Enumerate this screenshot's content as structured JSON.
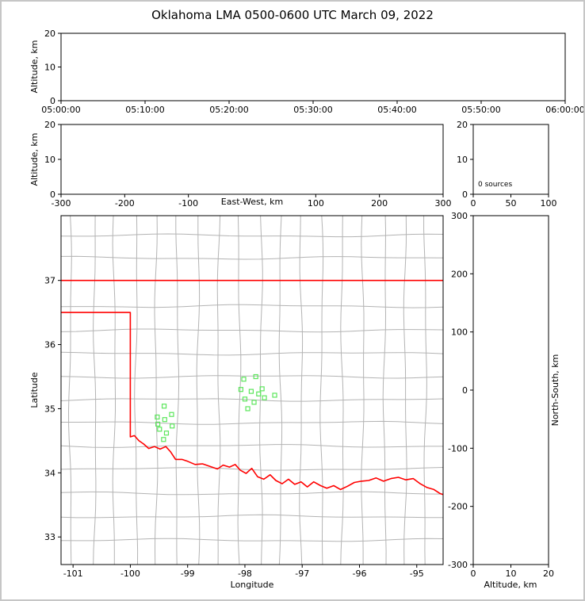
{
  "title": "Oklahoma LMA 0500-0600 UTC March 09, 2022",
  "colors": {
    "state_border": "#ff0000",
    "county_lines": "#b3b3b3",
    "sources": "#5ce65c",
    "axes": "#000000",
    "frame": "#c6c6c6"
  },
  "panels": {
    "time_height": {
      "ylabel": "Altitude, km",
      "xlim": [
        0,
        3600
      ],
      "ylim": [
        0,
        20
      ],
      "xticks": [
        {
          "v": 0,
          "label": "05:00:00"
        },
        {
          "v": 600,
          "label": "05:10:00"
        },
        {
          "v": 1200,
          "label": "05:20:00"
        },
        {
          "v": 1800,
          "label": "05:30:00"
        },
        {
          "v": 2400,
          "label": "05:40:00"
        },
        {
          "v": 3000,
          "label": "05:50:00"
        },
        {
          "v": 3600,
          "label": "06:00:00"
        }
      ],
      "yticks": [
        {
          "v": 0,
          "label": "0"
        },
        {
          "v": 10,
          "label": "10"
        },
        {
          "v": 20,
          "label": "20"
        }
      ]
    },
    "ew_height": {
      "ylabel": "Altitude, km",
      "xlabel": "East-West, km",
      "xlim": [
        -300,
        300
      ],
      "ylim": [
        0,
        20
      ],
      "xticks": [
        {
          "v": -300,
          "label": "-300"
        },
        {
          "v": -200,
          "label": "-200"
        },
        {
          "v": -100,
          "label": "-100"
        },
        {
          "v": 100,
          "label": "100"
        },
        {
          "v": 200,
          "label": "200"
        },
        {
          "v": 300,
          "label": "300"
        }
      ],
      "yticks": [
        {
          "v": 0,
          "label": "0"
        },
        {
          "v": 10,
          "label": "10"
        },
        {
          "v": 20,
          "label": "20"
        }
      ]
    },
    "alt_histogram": {
      "annotation": "0 sources",
      "xlim": [
        0,
        100
      ],
      "ylim": [
        0,
        20
      ],
      "xticks": [
        {
          "v": 0,
          "label": "0"
        },
        {
          "v": 50,
          "label": "50"
        },
        {
          "v": 100,
          "label": "100"
        }
      ],
      "yticks": [
        {
          "v": 0,
          "label": "0"
        },
        {
          "v": 10,
          "label": "10"
        },
        {
          "v": 20,
          "label": "20"
        }
      ]
    },
    "map": {
      "xlabel": "Longitude",
      "ylabel": "Latitude",
      "xlim": [
        -101.21,
        -94.54
      ],
      "ylim": [
        32.57,
        38.01
      ],
      "xticks": [
        {
          "v": -101,
          "label": "-101"
        },
        {
          "v": -100,
          "label": "-100"
        },
        {
          "v": -99,
          "label": "-99"
        },
        {
          "v": -98,
          "label": "-98"
        },
        {
          "v": -97,
          "label": "-97"
        },
        {
          "v": -96,
          "label": "-96"
        },
        {
          "v": -95,
          "label": "-95"
        }
      ],
      "yticks": [
        {
          "v": 33,
          "label": "33"
        },
        {
          "v": 34,
          "label": "34"
        },
        {
          "v": 35,
          "label": "35"
        },
        {
          "v": 36,
          "label": "36"
        },
        {
          "v": 37,
          "label": "37"
        }
      ]
    },
    "ns_height": {
      "xlabel": "Altitude, km",
      "right_label": "North-South, km",
      "xlim": [
        0,
        20
      ],
      "ylim": [
        -300,
        300
      ],
      "xticks": [
        {
          "v": 0,
          "label": "0"
        },
        {
          "v": 10,
          "label": "10"
        },
        {
          "v": 20,
          "label": "20"
        }
      ],
      "yticks": [
        {
          "v": 300,
          "label": "300"
        },
        {
          "v": 200,
          "label": "200"
        },
        {
          "v": 100,
          "label": "100"
        },
        {
          "v": 0,
          "label": "0"
        },
        {
          "v": -100,
          "label": "-100"
        },
        {
          "v": -200,
          "label": "-200"
        },
        {
          "v": -300,
          "label": "-300"
        }
      ]
    }
  },
  "chart_data": [
    {
      "type": "scatter",
      "name": "altitude-vs-time",
      "ylabel": "Altitude, km",
      "x_tick_labels": [
        "05:00:00",
        "05:10:00",
        "05:20:00",
        "05:30:00",
        "05:40:00",
        "05:50:00",
        "06:00:00"
      ],
      "ylim": [
        0,
        20
      ],
      "points": []
    },
    {
      "type": "scatter",
      "name": "altitude-vs-east-west",
      "xlabel": "East-West, km",
      "ylabel": "Altitude, km",
      "xlim": [
        -300,
        300
      ],
      "ylim": [
        0,
        20
      ],
      "points": []
    },
    {
      "type": "histogram",
      "name": "sources-vs-altitude",
      "xlim": [
        0,
        100
      ],
      "ylim": [
        0,
        20
      ],
      "annotation": "0 sources",
      "values": []
    },
    {
      "type": "scatter",
      "name": "plan-view-map",
      "xlabel": "Longitude",
      "ylabel": "Latitude",
      "xlim": [
        -101.21,
        -94.54
      ],
      "ylim": [
        32.57,
        38.01
      ],
      "marker": "open-square",
      "marker_color": "#5ce65c",
      "points": [
        [
          -98.02,
          35.46
        ],
        [
          -97.81,
          35.5
        ],
        [
          -98.07,
          35.3
        ],
        [
          -97.89,
          35.27
        ],
        [
          -97.7,
          35.31
        ],
        [
          -98.0,
          35.15
        ],
        [
          -97.84,
          35.1
        ],
        [
          -97.66,
          35.17
        ],
        [
          -97.48,
          35.21
        ],
        [
          -97.95,
          35.0
        ],
        [
          -97.76,
          35.23
        ],
        [
          -99.41,
          35.04
        ],
        [
          -99.53,
          34.87
        ],
        [
          -99.4,
          34.83
        ],
        [
          -99.28,
          34.91
        ],
        [
          -99.49,
          34.68
        ],
        [
          -99.37,
          34.62
        ],
        [
          -99.27,
          34.73
        ],
        [
          -99.42,
          34.52
        ],
        [
          -99.52,
          34.76
        ]
      ],
      "state_boundary": [
        [
          [
            -101.21,
            37.0
          ],
          [
            -94.54,
            37.0
          ]
        ],
        [
          [
            -101.21,
            36.5
          ],
          [
            -100.0,
            36.5
          ],
          [
            -100.0,
            34.56
          ],
          [
            -99.93,
            34.58
          ],
          [
            -99.85,
            34.5
          ],
          [
            -99.77,
            34.45
          ],
          [
            -99.68,
            34.38
          ],
          [
            -99.58,
            34.41
          ],
          [
            -99.48,
            34.37
          ],
          [
            -99.38,
            34.41
          ],
          [
            -99.3,
            34.33
          ],
          [
            -99.21,
            34.21
          ],
          [
            -99.1,
            34.21
          ],
          [
            -99.0,
            34.18
          ],
          [
            -98.87,
            34.13
          ],
          [
            -98.74,
            34.14
          ],
          [
            -98.61,
            34.1
          ],
          [
            -98.48,
            34.06
          ],
          [
            -98.38,
            34.12
          ],
          [
            -98.27,
            34.09
          ],
          [
            -98.17,
            34.13
          ],
          [
            -98.08,
            34.04
          ],
          [
            -97.98,
            33.99
          ],
          [
            -97.88,
            34.07
          ],
          [
            -97.78,
            33.94
          ],
          [
            -97.67,
            33.9
          ],
          [
            -97.56,
            33.97
          ],
          [
            -97.46,
            33.88
          ],
          [
            -97.35,
            33.83
          ],
          [
            -97.24,
            33.9
          ],
          [
            -97.13,
            33.82
          ],
          [
            -97.02,
            33.86
          ],
          [
            -96.91,
            33.78
          ],
          [
            -96.8,
            33.86
          ],
          [
            -96.68,
            33.8
          ],
          [
            -96.57,
            33.76
          ],
          [
            -96.45,
            33.8
          ],
          [
            -96.33,
            33.74
          ],
          [
            -96.21,
            33.79
          ],
          [
            -96.09,
            33.85
          ],
          [
            -95.97,
            33.87
          ],
          [
            -95.84,
            33.88
          ],
          [
            -95.71,
            33.92
          ],
          [
            -95.58,
            33.87
          ],
          [
            -95.45,
            33.91
          ],
          [
            -95.32,
            33.93
          ],
          [
            -95.19,
            33.89
          ],
          [
            -95.06,
            33.91
          ],
          [
            -94.94,
            33.83
          ],
          [
            -94.82,
            33.77
          ],
          [
            -94.7,
            33.74
          ],
          [
            -94.6,
            33.68
          ],
          [
            -94.54,
            33.66
          ]
        ]
      ],
      "county_lon_lines": [
        -101.05,
        -100.62,
        -100.28,
        -99.9,
        -99.55,
        -99.18,
        -98.82,
        -98.46,
        -98.1,
        -97.72,
        -97.38,
        -97.02,
        -96.66,
        -96.3,
        -95.94,
        -95.56,
        -95.2,
        -94.85
      ],
      "county_lat_lines": [
        37.7,
        37.35,
        36.6,
        36.22,
        35.86,
        35.5,
        35.14,
        34.78,
        34.42,
        34.06,
        33.68,
        33.32,
        32.95
      ]
    },
    {
      "type": "scatter",
      "name": "north-south-vs-altitude",
      "xlabel": "Altitude, km",
      "right_label": "North-South, km",
      "xlim": [
        0,
        20
      ],
      "ylim": [
        -300,
        300
      ],
      "points": []
    }
  ]
}
